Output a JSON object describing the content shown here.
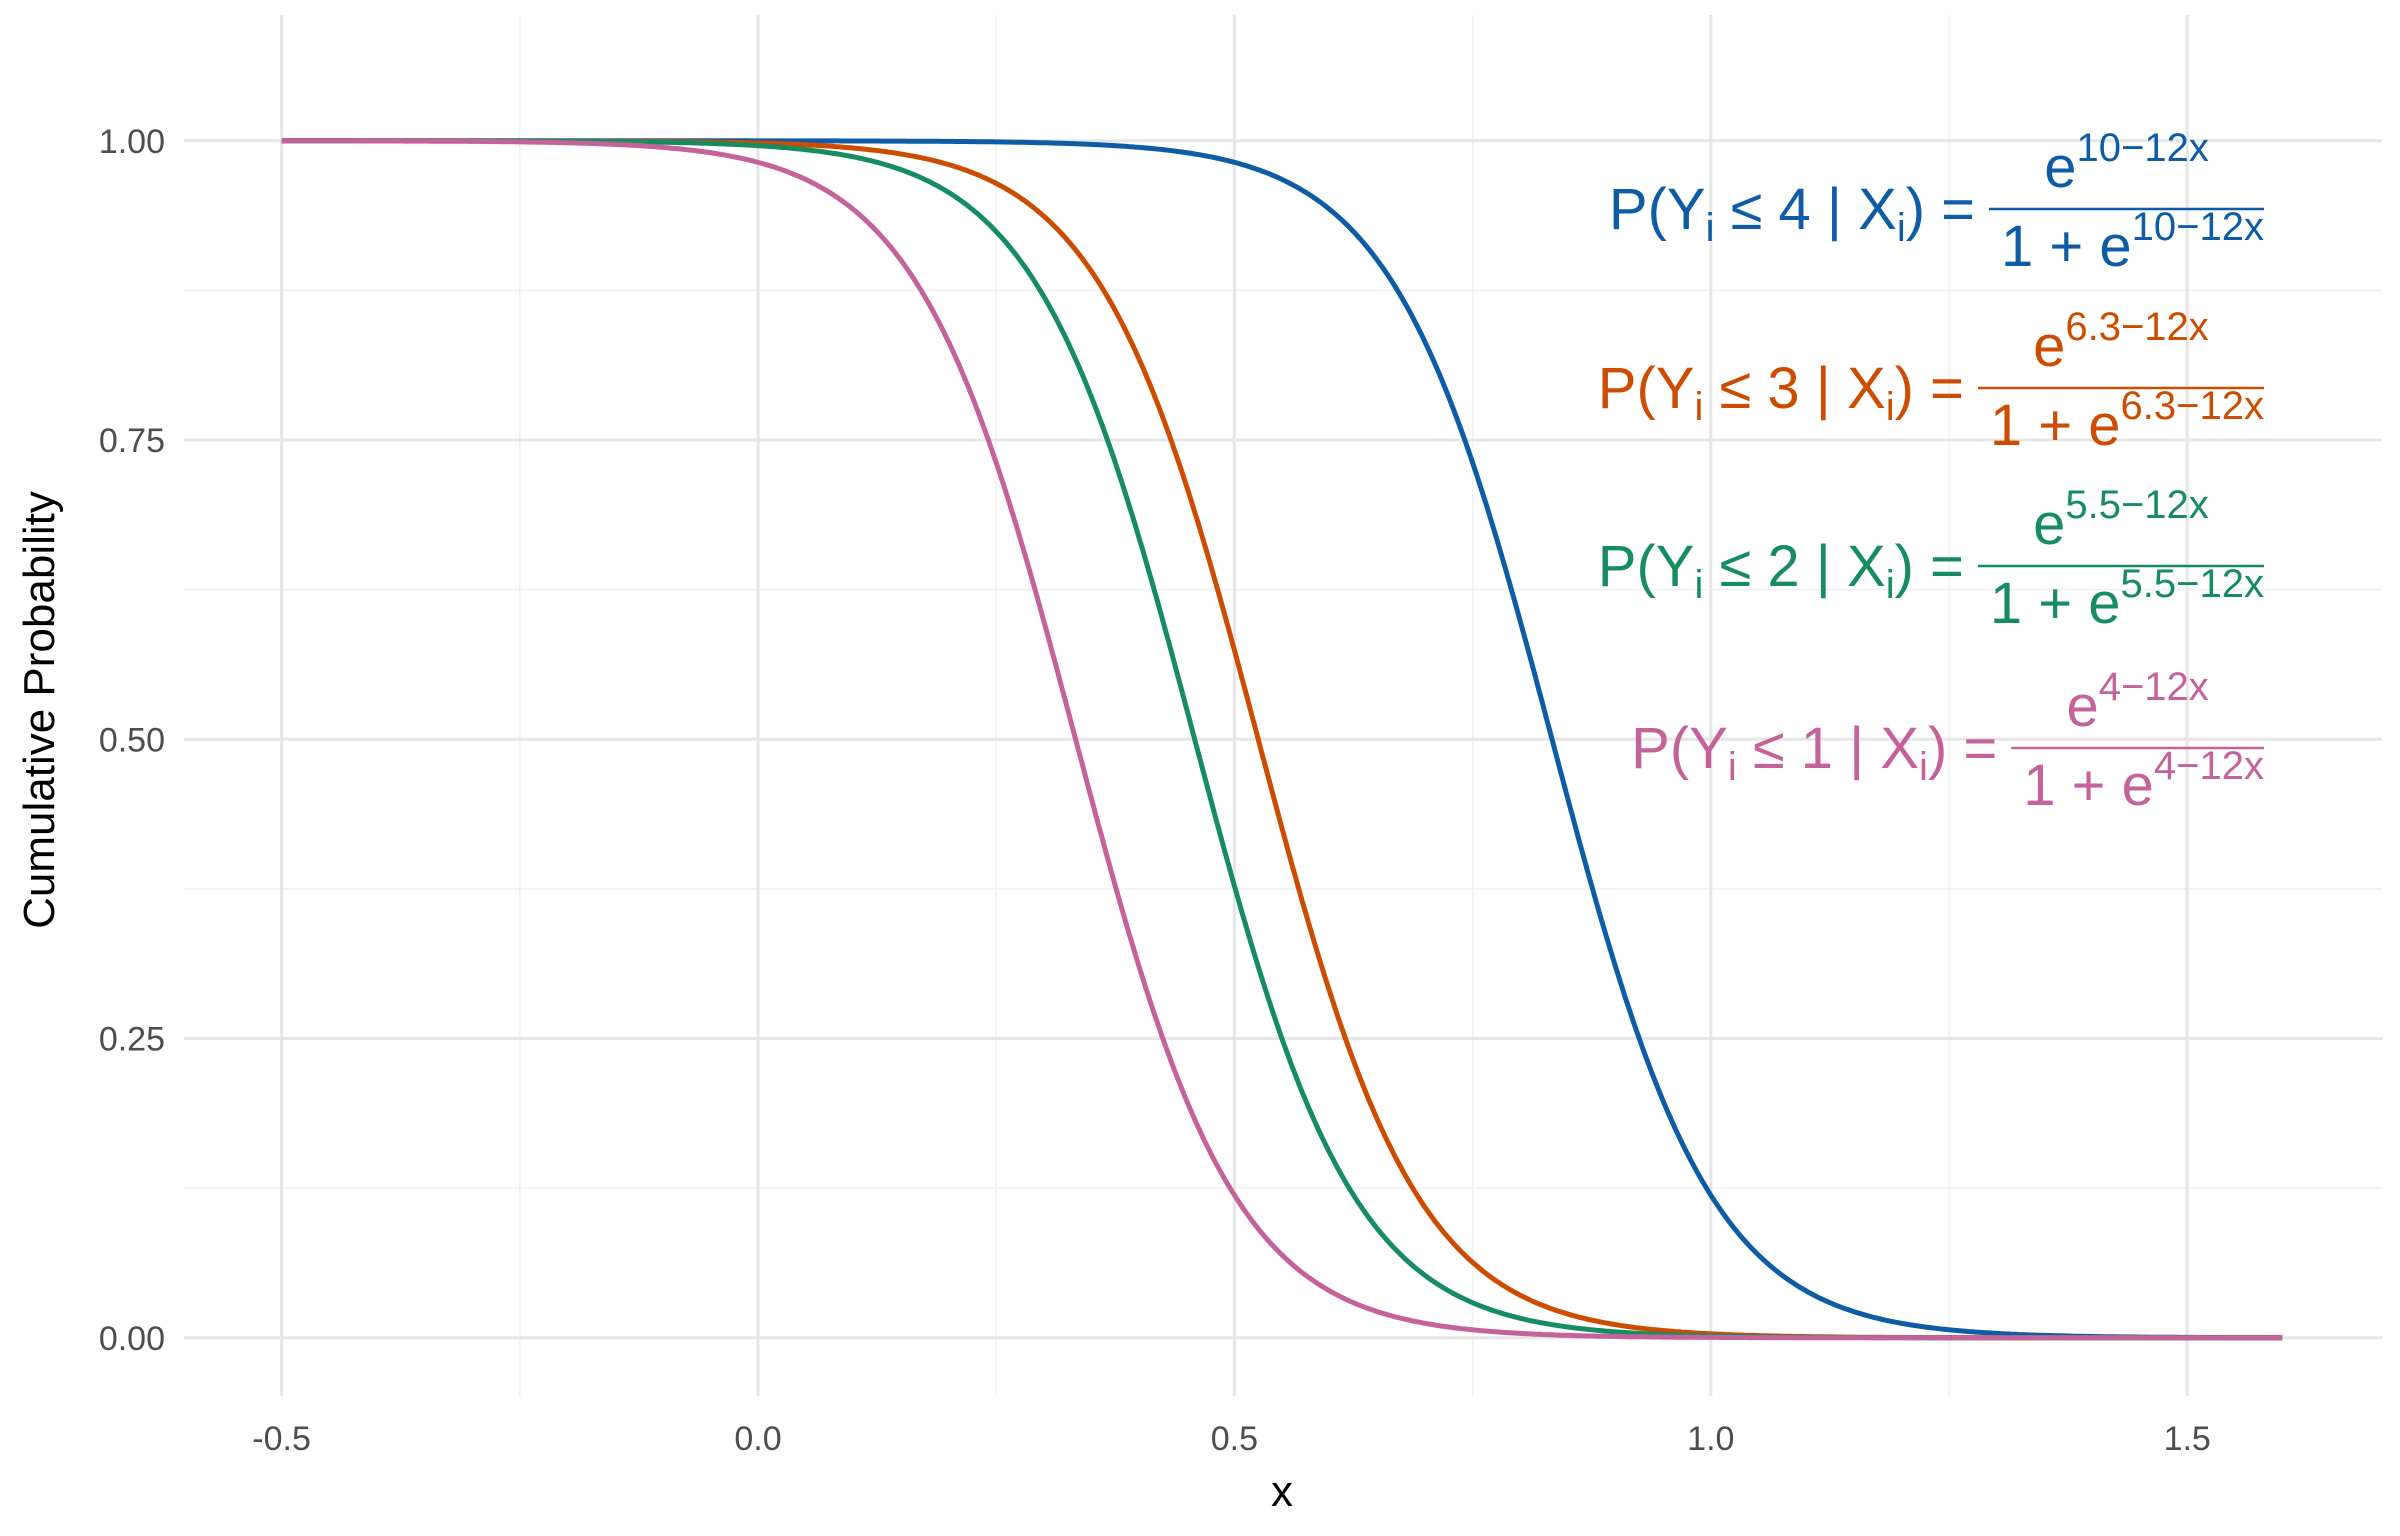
{
  "chart_data": {
    "type": "line",
    "title": "",
    "xlabel": "x",
    "ylabel": "Cumulative Probability",
    "xlim": [
      -0.6,
      1.75
    ],
    "ylim": [
      -0.04,
      1.1
    ],
    "x_range": [
      -0.5,
      1.6
    ],
    "x_ticks": [
      -0.5,
      0.0,
      0.5,
      1.0,
      1.5
    ],
    "x_tick_labels": [
      "-0.5",
      "0.0",
      "0.5",
      "1.0",
      "1.5"
    ],
    "y_ticks": [
      0,
      0.25,
      0.5,
      0.75,
      1.0
    ],
    "y_tick_labels": [
      "0.00",
      "0.25",
      "0.50",
      "0.75",
      "1.00"
    ],
    "grid": true,
    "legend": "none",
    "series": [
      {
        "name": "P(Y ≤ 4 | X)",
        "intercept": 10,
        "slope": -12,
        "color": "#0f5ca6",
        "annotation": {
          "lhs_prefix": "P(Y",
          "sub": "i",
          "relation": " ≤ 4 | X",
          "close": ")",
          "equals": "=",
          "numerator_base": "e",
          "exponent": "10−12x",
          "denominator_base": "1 + e"
        }
      },
      {
        "name": "P(Y ≤ 3 | X)",
        "intercept": 6.3,
        "slope": -12,
        "color": "#cc4c02",
        "annotation": {
          "lhs_prefix": "P(Y",
          "sub": "i",
          "relation": " ≤ 3 | X",
          "close": ")",
          "equals": "=",
          "numerator_base": "e",
          "exponent": "6.3−12x",
          "denominator_base": "1 + e"
        }
      },
      {
        "name": "P(Y ≤ 2 | X)",
        "intercept": 5.5,
        "slope": -12,
        "color": "#178c60",
        "annotation": {
          "lhs_prefix": "P(Y",
          "sub": "i",
          "relation": " ≤ 2 | X",
          "close": ")",
          "equals": "=",
          "numerator_base": "e",
          "exponent": "5.5−12x",
          "denominator_base": "1 + e"
        }
      },
      {
        "name": "P(Y ≤ 1 | X)",
        "intercept": 4,
        "slope": -12,
        "color": "#c4639a",
        "annotation": {
          "lhs_prefix": "P(Y",
          "sub": "i",
          "relation": " ≤ 1 | X",
          "close": ")",
          "equals": "=",
          "numerator_base": "e",
          "exponent": "4−12x",
          "denominator_base": "1 + e"
        }
      }
    ]
  }
}
